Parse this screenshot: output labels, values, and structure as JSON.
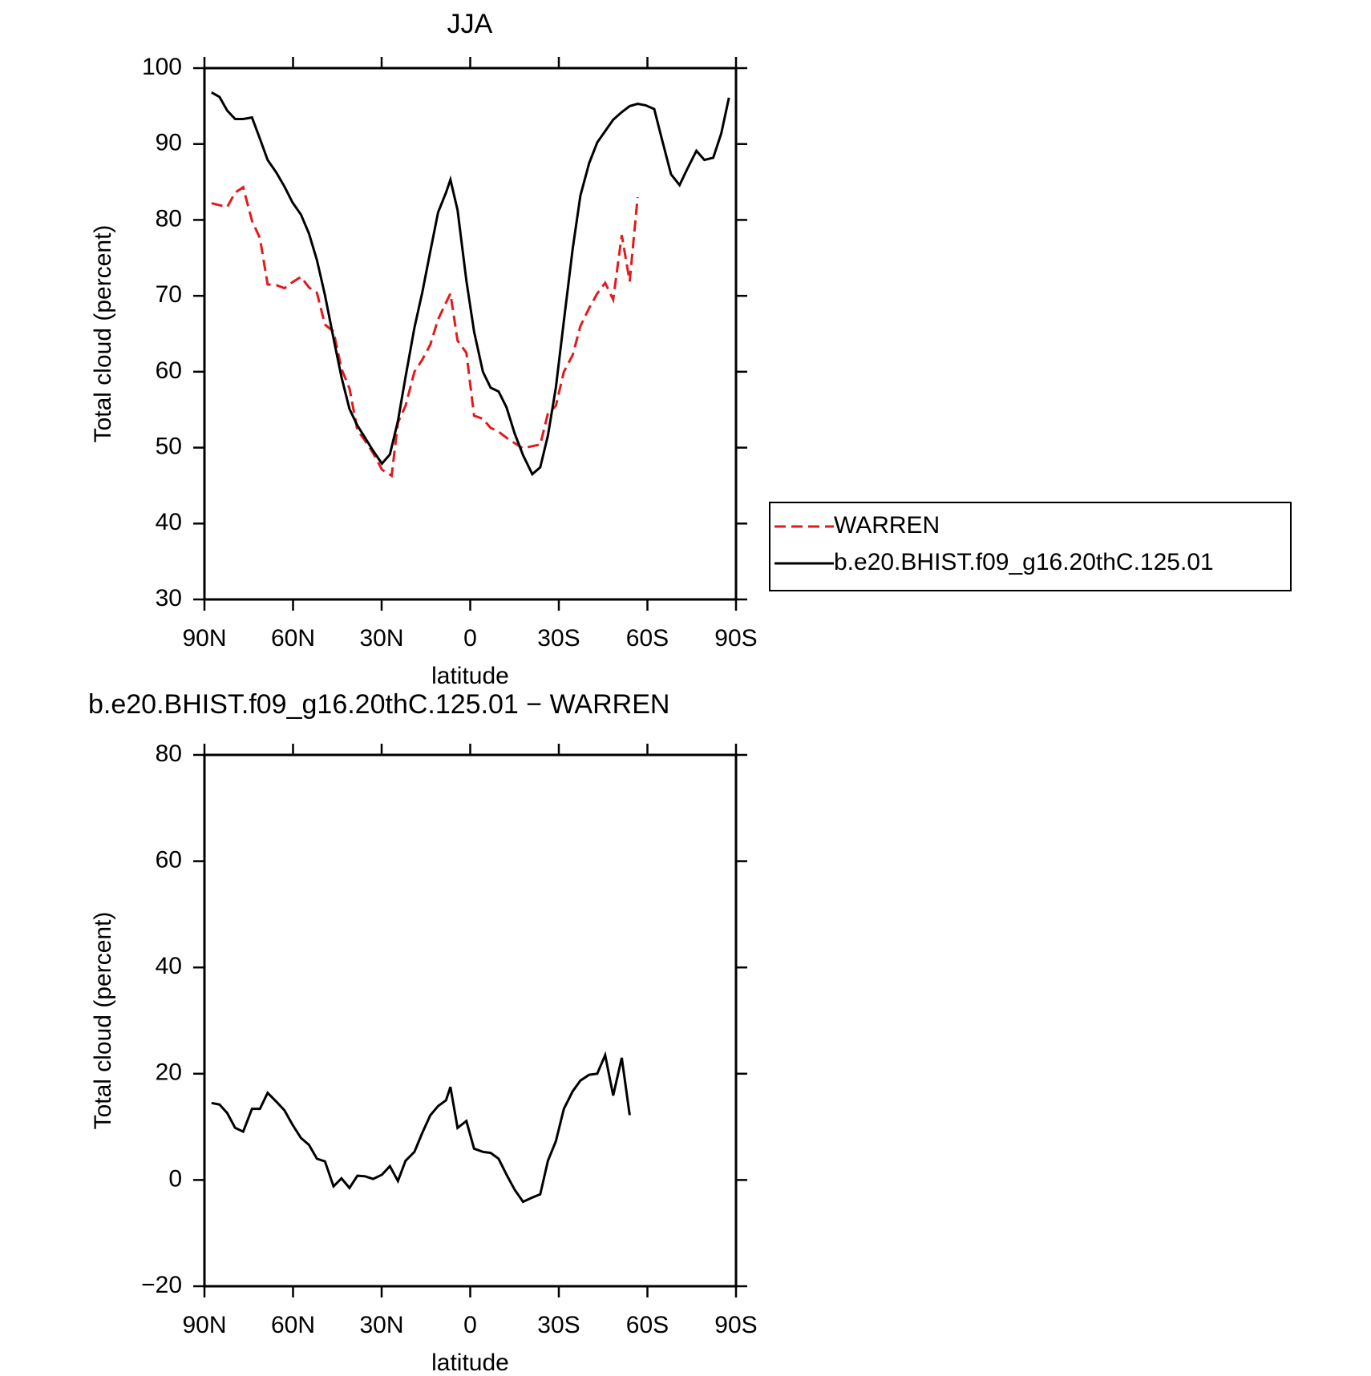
{
  "chart_data": [
    {
      "type": "line",
      "title": "JJA",
      "xlabel": "latitude",
      "ylabel": "Total cloud (percent)",
      "xlim": [
        90,
        -90
      ],
      "xticks": [
        {
          "value": 90,
          "label": "90N"
        },
        {
          "value": 60,
          "label": "60N"
        },
        {
          "value": 30,
          "label": "30N"
        },
        0,
        {
          "value": -30,
          "label": "30S"
        },
        {
          "value": -60,
          "label": "60S"
        },
        {
          "value": -90,
          "label": "90S"
        }
      ],
      "ylim": [
        30,
        100
      ],
      "yticks": [
        30,
        40,
        50,
        60,
        70,
        80,
        90,
        100
      ],
      "legend": "outside-right",
      "series": [
        {
          "name": "WARREN",
          "color": "#e31a1c",
          "line_style": "dashed",
          "x": [
            87.6,
            82.3,
            79.6,
            76.9,
            73.9,
            71.2,
            68.6,
            65.6,
            62.9,
            60.2,
            57.3,
            54.6,
            51.9,
            49.2,
            46.3,
            43.6,
            40.9,
            38.2,
            35.6,
            32.9,
            29.9,
            26.6,
            24.5,
            21.9,
            18.9,
            16.2,
            13.5,
            10.9,
            8.2,
            6.7,
            4.3,
            1.3,
            -1.3,
            -4.3,
            -6.9,
            -9.6,
            -12.3,
            -15.0,
            -17.9,
            -21.0,
            -23.7,
            -26.3,
            -29.0,
            -31.7,
            -34.7,
            -37.3,
            -40.3,
            -43.0,
            -45.7,
            -48.4,
            -51.3,
            -54.0,
            -56.7
          ],
          "values": [
            82.2,
            81.7,
            83.6,
            84.3,
            79.9,
            77.6,
            71.5,
            71.4,
            71.0,
            71.8,
            72.5,
            71.1,
            70.4,
            66.2,
            65.3,
            60.4,
            57.8,
            52.3,
            50.9,
            49.3,
            47.1,
            46.3,
            53.3,
            55.5,
            60.0,
            61.6,
            63.6,
            66.9,
            69.1,
            70.3,
            64.1,
            62.5,
            54.2,
            53.8,
            52.6,
            52.1,
            51.3,
            50.6,
            49.9,
            50.2,
            50.4,
            54.5,
            55.5,
            60.0,
            62.2,
            66.0,
            68.4,
            70.3,
            71.7,
            69.5,
            78.0,
            71.9,
            83.0
          ]
        },
        {
          "name": "b.e20.BHIST.f09_g16.20thC.125.01",
          "color": "#000000",
          "line_style": "solid",
          "x": [
            87.6,
            84.9,
            82.3,
            79.6,
            76.9,
            73.9,
            71.2,
            68.6,
            65.6,
            62.9,
            60.2,
            57.3,
            54.6,
            51.9,
            49.2,
            46.3,
            43.6,
            40.9,
            38.2,
            35.6,
            32.9,
            29.9,
            27.2,
            24.5,
            21.9,
            18.9,
            16.2,
            13.5,
            10.9,
            8.2,
            6.7,
            4.3,
            1.3,
            -1.3,
            -4.3,
            -6.9,
            -9.6,
            -12.3,
            -15.0,
            -17.9,
            -21.0,
            -23.7,
            -26.3,
            -29.0,
            -31.7,
            -34.7,
            -37.3,
            -40.3,
            -43.0,
            -45.7,
            -48.4,
            -51.3,
            -54.0,
            -56.7,
            -59.4,
            -62.3,
            -65.0,
            -68.0,
            -70.9,
            -73.6,
            -76.6,
            -79.3,
            -82.3,
            -85.0,
            -87.6
          ],
          "values": [
            96.8,
            96.2,
            94.4,
            93.3,
            93.3,
            93.5,
            90.7,
            87.9,
            86.2,
            84.4,
            82.3,
            80.7,
            78.2,
            74.7,
            70.1,
            64.4,
            59.3,
            55.1,
            52.9,
            51.3,
            49.6,
            47.9,
            49.1,
            53.5,
            59.3,
            65.8,
            70.5,
            75.9,
            81.0,
            83.6,
            85.3,
            81.3,
            72.0,
            65.3,
            60.0,
            57.9,
            57.4,
            55.3,
            51.9,
            49.0,
            46.5,
            47.4,
            51.6,
            57.9,
            66.7,
            76.2,
            83.2,
            87.5,
            90.2,
            91.7,
            93.2,
            94.2,
            95.0,
            95.3,
            95.1,
            94.6,
            90.5,
            86.0,
            84.6,
            86.8,
            89.1,
            87.9,
            88.2,
            91.4,
            96.1
          ]
        }
      ]
    },
    {
      "type": "line",
      "title": "b.e20.BHIST.f09_g16.20thC.125.01 − WARREN",
      "xlabel": "latitude",
      "ylabel": "Total cloud (percent)",
      "xlim": [
        90,
        -90
      ],
      "xticks": [
        {
          "value": 90,
          "label": "90N"
        },
        {
          "value": 60,
          "label": "60N"
        },
        {
          "value": 30,
          "label": "30N"
        },
        0,
        {
          "value": -30,
          "label": "30S"
        },
        {
          "value": -60,
          "label": "60S"
        },
        {
          "value": -90,
          "label": "90S"
        }
      ],
      "ylim": [
        -20,
        80
      ],
      "yticks": [
        {
          "value": -20,
          "label": "−20"
        },
        0,
        20,
        40,
        60,
        80
      ],
      "series": [
        {
          "color": "#000000",
          "line_style": "solid",
          "x": [
            87.6,
            84.9,
            82.3,
            79.6,
            76.9,
            73.9,
            71.2,
            68.6,
            65.6,
            62.9,
            60.2,
            57.3,
            54.6,
            51.9,
            49.2,
            46.3,
            43.6,
            40.9,
            38.2,
            35.6,
            32.9,
            29.9,
            27.2,
            24.5,
            21.9,
            18.9,
            16.2,
            13.5,
            10.9,
            8.2,
            6.7,
            4.3,
            1.3,
            -1.3,
            -4.3,
            -6.9,
            -9.6,
            -12.3,
            -15.0,
            -17.9,
            -21.0,
            -23.7,
            -26.3,
            -29.0,
            -31.7,
            -34.7,
            -37.3,
            -40.3,
            -43.0,
            -45.7,
            -48.4,
            -51.3,
            -54.0
          ],
          "values": [
            14.5,
            14.2,
            12.6,
            9.8,
            9.1,
            13.4,
            13.4,
            16.4,
            14.7,
            13.1,
            10.4,
            7.9,
            6.6,
            4.0,
            3.5,
            -1.2,
            0.3,
            -1.5,
            0.8,
            0.7,
            0.2,
            1.0,
            2.6,
            -0.2,
            3.6,
            5.3,
            8.9,
            12.2,
            13.9,
            15.0,
            17.5,
            9.8,
            11.1,
            5.9,
            5.3,
            5.1,
            4.0,
            1.0,
            -1.8,
            -4.1,
            -3.3,
            -2.7,
            3.6,
            7.3,
            13.4,
            16.7,
            18.7,
            19.8,
            20.0,
            23.5,
            15.9,
            23.0,
            12.2
          ]
        }
      ]
    }
  ]
}
